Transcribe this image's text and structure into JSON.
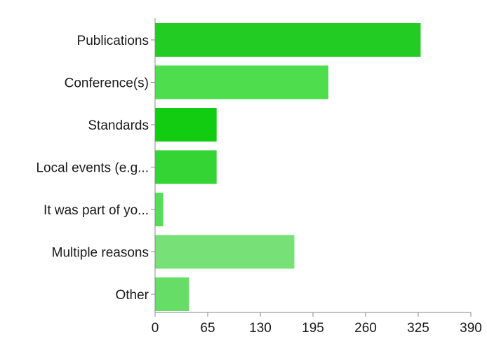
{
  "chart_data": {
    "type": "bar",
    "orientation": "horizontal",
    "categories": [
      "Publications",
      "Conference(s)",
      "Standards",
      "Local events (e.g...",
      "It was part of yo...",
      "Multiple reasons",
      "Other"
    ],
    "values": [
      328,
      214,
      76,
      76,
      10,
      172,
      42
    ],
    "bar_colors": [
      "#22cc22",
      "#4ddd4d",
      "#11cc11",
      "#33d433",
      "#55dd55",
      "#77e077",
      "#66dd66"
    ],
    "xlim": [
      0,
      390
    ],
    "xticks": [
      0,
      65,
      130,
      195,
      260,
      325,
      390
    ],
    "xtick_labels": [
      "0",
      "65",
      "130",
      "195",
      "260",
      "325",
      "390"
    ],
    "grid": false,
    "legend": "none"
  }
}
